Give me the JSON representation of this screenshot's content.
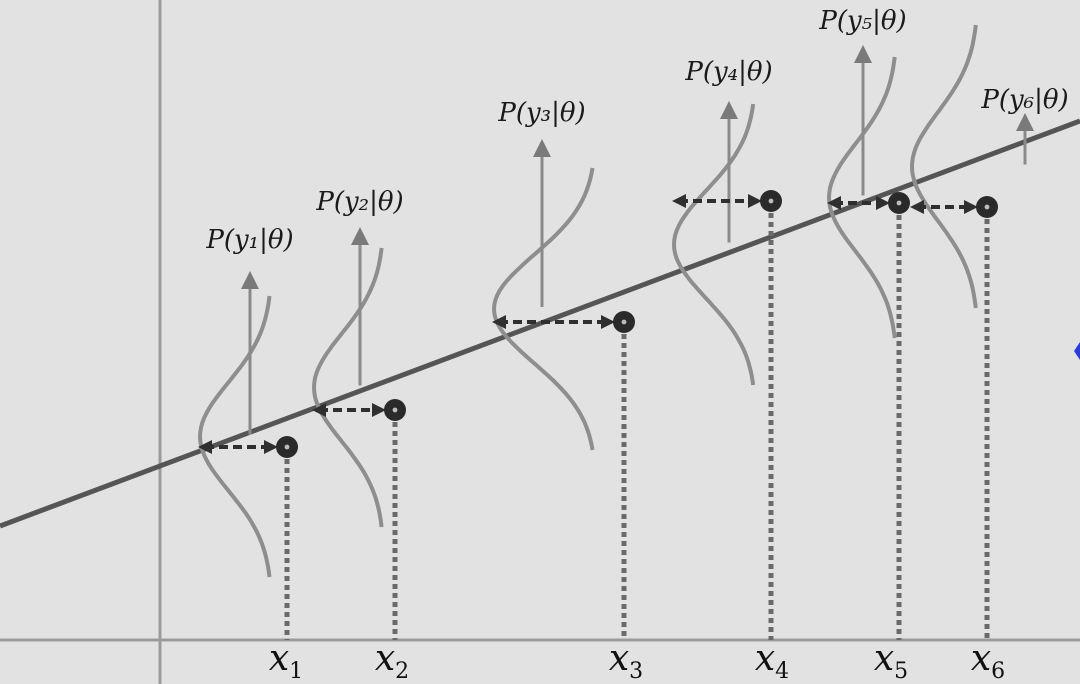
{
  "colors": {
    "background": "#e2e2e2",
    "axis": "#9a9a9a",
    "regression_line": "#555555",
    "gaussian": "#8e8e8e",
    "arrow": "#7a7a7a",
    "residual": "#2f2f2f",
    "point": "#2a2a2a",
    "accent": "#2a3bd8"
  },
  "points": [
    {
      "x_label": "x",
      "x_sub": "1",
      "p_label": "P(y₁|θ)"
    },
    {
      "x_label": "x",
      "x_sub": "2",
      "p_label": "P(y₂|θ)"
    },
    {
      "x_label": "x",
      "x_sub": "3",
      "p_label": "P(y₃|θ)"
    },
    {
      "x_label": "x",
      "x_sub": "4",
      "p_label": "P(y₄|θ)"
    },
    {
      "x_label": "x",
      "x_sub": "5",
      "p_label": "P(y₅|θ)"
    },
    {
      "x_label": "x",
      "x_sub": "6",
      "p_label": "P(y₆|θ)"
    }
  ]
}
